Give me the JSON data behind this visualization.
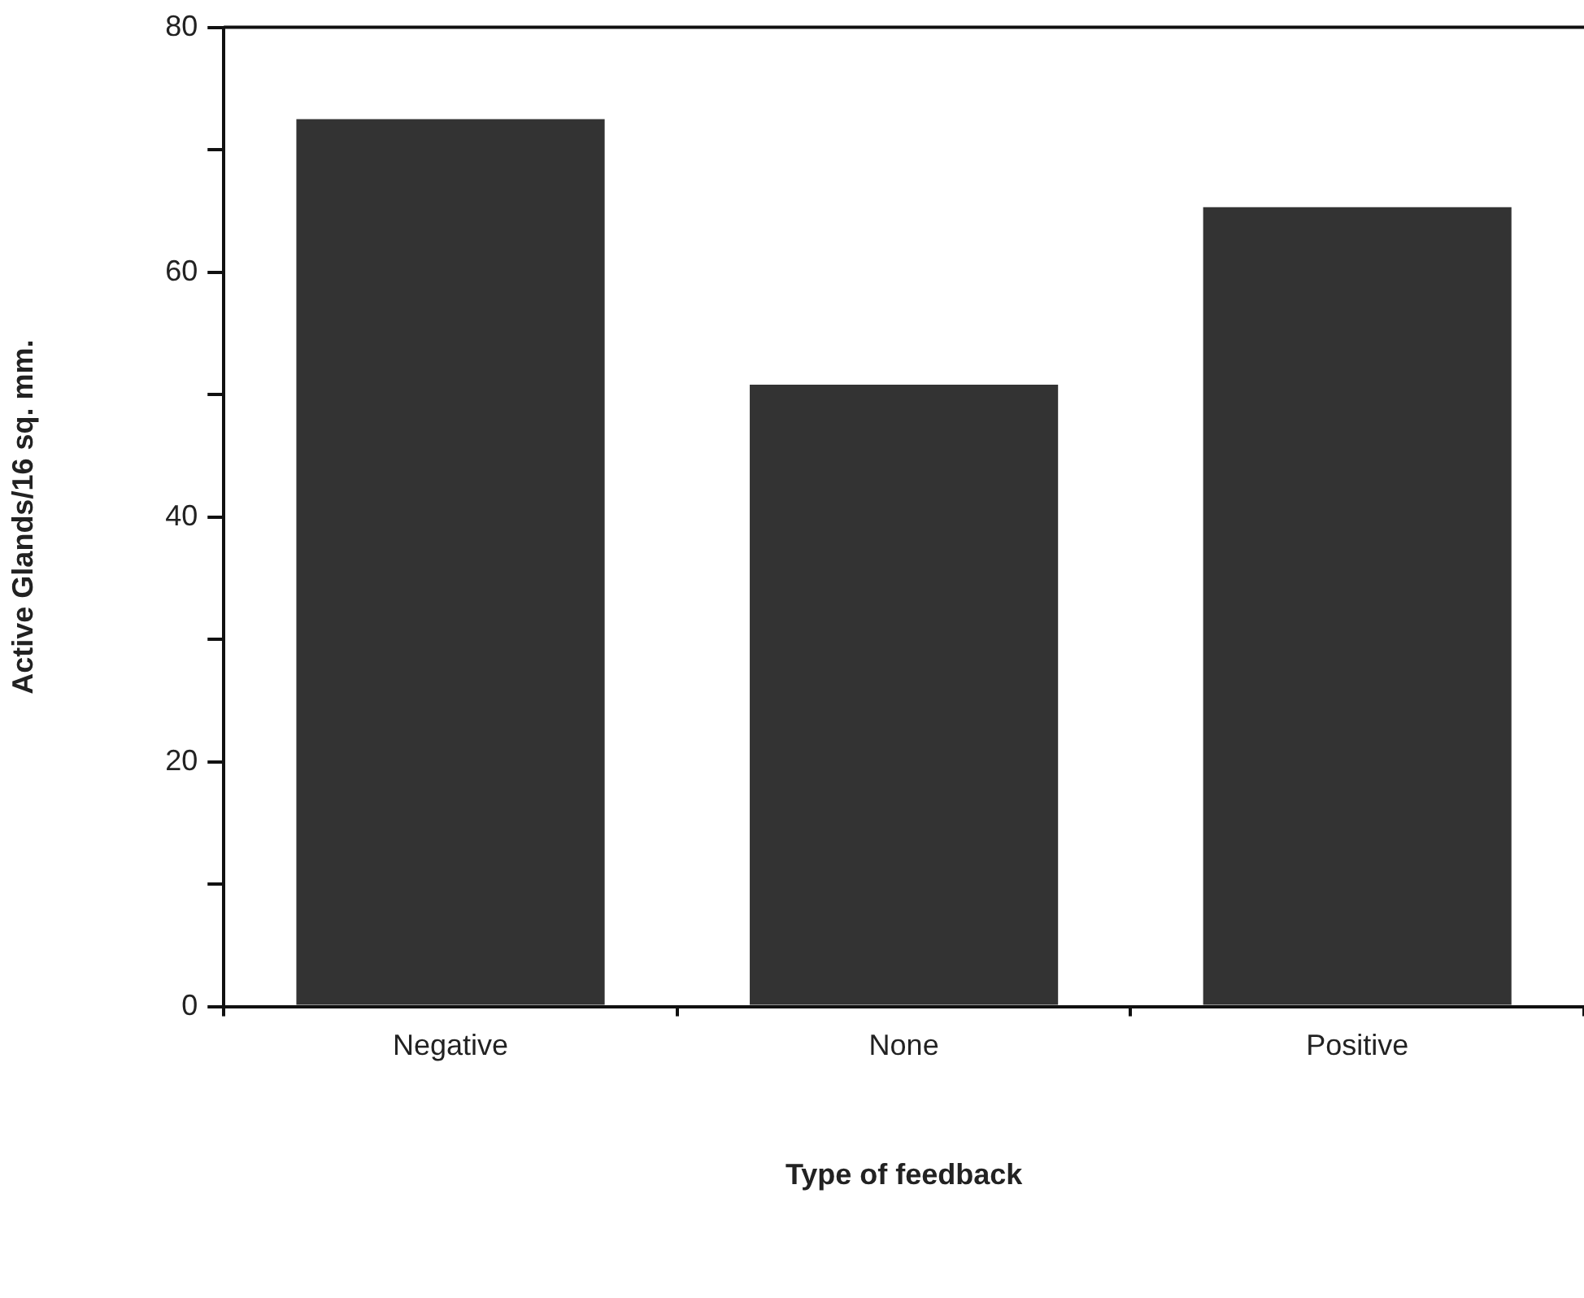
{
  "chart_data": {
    "type": "bar",
    "xlabel": "Type of feedback",
    "ylabel": "Active Glands/16 sq. mm.",
    "categories": [
      "Negative",
      "None",
      "Positive"
    ],
    "values": [
      72.5,
      50.8,
      65.3
    ],
    "color": "#333333",
    "ylim": [
      0,
      80
    ],
    "yticks": [
      0,
      {
        "value": 10,
        "label": null
      },
      20,
      {
        "value": 30,
        "label": null
      },
      40,
      {
        "value": 50,
        "label": null
      },
      60,
      {
        "value": 70,
        "label": null
      },
      80
    ],
    "grid": false
  }
}
